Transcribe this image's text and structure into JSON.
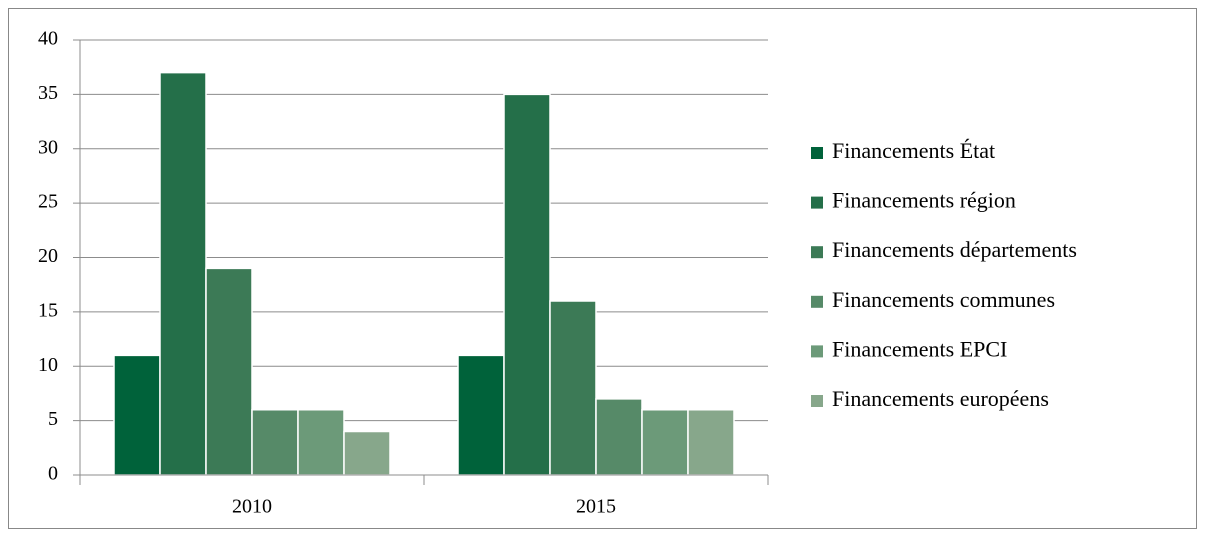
{
  "chart_data": {
    "type": "bar",
    "categories": [
      "2010",
      "2015"
    ],
    "series": [
      {
        "name": "Financements État",
        "color": "#00623a",
        "values": [
          11,
          11
        ]
      },
      {
        "name": "Financements région",
        "color": "#246f49",
        "values": [
          37,
          35
        ]
      },
      {
        "name": "Financements départements",
        "color": "#3c7a56",
        "values": [
          19,
          16
        ]
      },
      {
        "name": "Financements communes",
        "color": "#568a68",
        "values": [
          6,
          7
        ]
      },
      {
        "name": "Financements EPCI",
        "color": "#6c9a79",
        "values": [
          6,
          6
        ]
      },
      {
        "name": "Financements européens",
        "color": "#87a78b",
        "values": [
          4,
          6
        ]
      }
    ],
    "ylim": [
      0,
      40
    ],
    "yticks": [
      0,
      5,
      10,
      15,
      20,
      25,
      30,
      35,
      40
    ],
    "grid": true,
    "legend": "right"
  }
}
